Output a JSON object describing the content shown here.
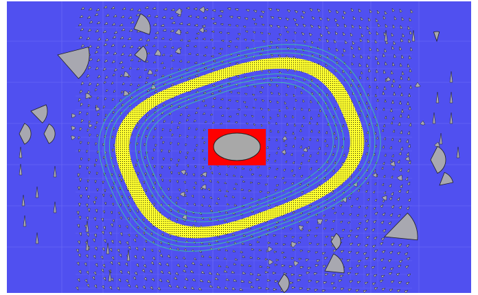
{
  "visualization": {
    "background_color": "#5050f0",
    "grid_line_color": "#7070f5",
    "band_fill_color": "#ffff30",
    "band_stipple_color": "#202000",
    "contour_color": "#3cc8a0",
    "obstacle_box_color": "#ff0000",
    "obstacle_ellipse_color": "#a8a8a8",
    "glyph_color": "#a8a8b0",
    "glyph_stroke_color": "#202020",
    "glyph_icon": "wedge-glyph-icon",
    "obstacle_icon": "ellipse-obstacle-icon"
  }
}
